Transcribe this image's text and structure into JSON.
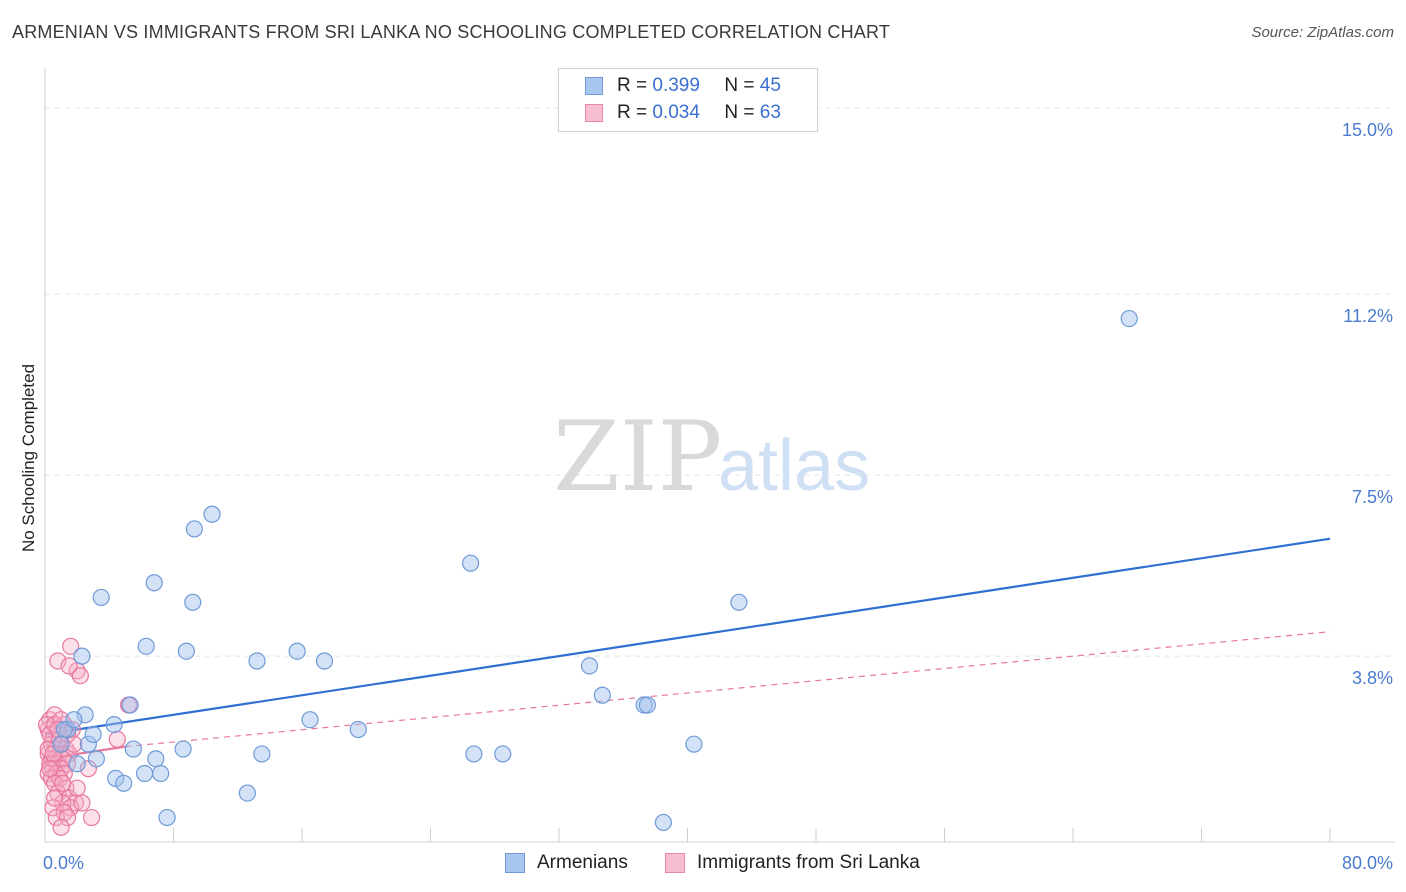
{
  "header": {
    "title": "ARMENIAN VS IMMIGRANTS FROM SRI LANKA NO SCHOOLING COMPLETED CORRELATION CHART",
    "source": "Source: ZipAtlas.com"
  },
  "watermark": {
    "zip": "ZIP",
    "atlas": "atlas"
  },
  "legend": {
    "rows": [
      {
        "r_label": "R =",
        "r_value": "0.399",
        "n_label": "N =",
        "n_value": "45",
        "color": "#a9c6ef",
        "border": "#6f9ad8"
      },
      {
        "r_label": "R =",
        "r_value": "0.034",
        "n_label": "N =",
        "n_value": "63",
        "color": "#f7bdd0",
        "border": "#e887a6"
      }
    ]
  },
  "bottom_legend": {
    "armenians": "Armenians",
    "sri_lanka": "Immigrants from Sri Lanka"
  },
  "colors": {
    "armenian_fill": "rgba(158,190,235,0.45)",
    "armenian_stroke": "#6f9ad8",
    "armenian_line": "#2f6fd0",
    "srilanka_fill": "rgba(246,176,200,0.40)",
    "srilanka_stroke": "#e8779d",
    "srilanka_line": "#e8779d",
    "grid": "#e3e3e3",
    "axis_label": "#4a7bd0"
  },
  "chart_data": {
    "type": "scatter",
    "title": "ARMENIAN VS IMMIGRANTS FROM SRI LANKA NO SCHOOLING COMPLETED CORRELATION CHART",
    "xlabel": "",
    "ylabel": "No Schooling Completed",
    "xlim": [
      0,
      80
    ],
    "ylim": [
      0,
      15.7
    ],
    "x_tick_labels": [
      "0.0%",
      "80.0%"
    ],
    "y_ticks": [
      3.8,
      7.5,
      11.2,
      15.0
    ],
    "y_tick_labels": [
      "3.8%",
      "7.5%",
      "11.2%",
      "15.0%"
    ],
    "grid": true,
    "legend_placement": "top-center",
    "series": [
      {
        "name": "Armenians",
        "points": [
          [
            2.3,
            3.8
          ],
          [
            3.5,
            5.0
          ],
          [
            6.8,
            5.3
          ],
          [
            9.3,
            6.4
          ],
          [
            10.4,
            6.7
          ],
          [
            9.2,
            4.9
          ],
          [
            6.3,
            4.0
          ],
          [
            8.8,
            3.9
          ],
          [
            13.2,
            3.7
          ],
          [
            15.7,
            3.9
          ],
          [
            17.4,
            3.7
          ],
          [
            2.5,
            2.6
          ],
          [
            1.4,
            2.3
          ],
          [
            4.3,
            2.4
          ],
          [
            2.7,
            2.0
          ],
          [
            5.5,
            1.9
          ],
          [
            8.6,
            1.9
          ],
          [
            13.5,
            1.8
          ],
          [
            3.2,
            1.7
          ],
          [
            6.9,
            1.7
          ],
          [
            4.4,
            1.3
          ],
          [
            4.9,
            1.2
          ],
          [
            6.2,
            1.4
          ],
          [
            7.2,
            1.4
          ],
          [
            12.6,
            1.0
          ],
          [
            7.6,
            0.5
          ],
          [
            16.5,
            2.5
          ],
          [
            19.5,
            2.3
          ],
          [
            26.5,
            5.7
          ],
          [
            26.7,
            1.8
          ],
          [
            28.5,
            1.8
          ],
          [
            33.9,
            3.6
          ],
          [
            34.7,
            3.0
          ],
          [
            37.3,
            2.8
          ],
          [
            37.5,
            2.8
          ],
          [
            40.4,
            2.0
          ],
          [
            38.5,
            0.4
          ],
          [
            43.2,
            4.9
          ],
          [
            67.5,
            10.7
          ],
          [
            1.2,
            2.3
          ],
          [
            1.8,
            2.5
          ],
          [
            5.3,
            2.8
          ],
          [
            3.0,
            2.2
          ],
          [
            1.0,
            2.0
          ],
          [
            2.0,
            1.6
          ]
        ],
        "trend": {
          "x": [
            0,
            80
          ],
          "y": [
            2.2,
            6.2
          ]
        }
      },
      {
        "name": "Immigrants from Sri Lanka",
        "points": [
          [
            1.6,
            4.0
          ],
          [
            0.8,
            3.7
          ],
          [
            2.0,
            3.5
          ],
          [
            2.2,
            3.4
          ],
          [
            1.5,
            3.6
          ],
          [
            5.2,
            2.8
          ],
          [
            0.3,
            2.5
          ],
          [
            0.6,
            2.6
          ],
          [
            1.2,
            2.4
          ],
          [
            0.2,
            2.3
          ],
          [
            0.9,
            2.2
          ],
          [
            0.5,
            2.1
          ],
          [
            0.4,
            2.0
          ],
          [
            1.0,
            2.0
          ],
          [
            0.7,
            1.9
          ],
          [
            1.3,
            1.9
          ],
          [
            0.2,
            1.8
          ],
          [
            0.9,
            1.8
          ],
          [
            1.5,
            1.8
          ],
          [
            0.4,
            1.7
          ],
          [
            0.6,
            1.7
          ],
          [
            1.1,
            1.7
          ],
          [
            0.3,
            1.6
          ],
          [
            0.8,
            1.6
          ],
          [
            1.4,
            1.6
          ],
          [
            0.5,
            1.5
          ],
          [
            1.0,
            1.5
          ],
          [
            0.2,
            1.4
          ],
          [
            0.7,
            1.4
          ],
          [
            1.2,
            1.4
          ],
          [
            0.4,
            1.3
          ],
          [
            0.9,
            1.3
          ],
          [
            0.6,
            1.2
          ],
          [
            1.3,
            1.1
          ],
          [
            0.8,
            1.0
          ],
          [
            1.5,
            0.9
          ],
          [
            1.9,
            0.8
          ],
          [
            1.1,
            0.8
          ],
          [
            0.5,
            0.7
          ],
          [
            1.6,
            0.7
          ],
          [
            2.3,
            0.8
          ],
          [
            1.2,
            0.6
          ],
          [
            0.7,
            0.5
          ],
          [
            1.4,
            0.5
          ],
          [
            2.9,
            0.5
          ],
          [
            1.0,
            0.3
          ],
          [
            4.5,
            2.1
          ],
          [
            2.7,
            1.5
          ],
          [
            1.8,
            2.0
          ],
          [
            0.1,
            2.4
          ],
          [
            0.3,
            2.2
          ],
          [
            0.6,
            2.4
          ],
          [
            1.0,
            2.5
          ],
          [
            1.7,
            2.3
          ],
          [
            0.2,
            1.9
          ],
          [
            0.5,
            1.8
          ],
          [
            0.9,
            2.1
          ],
          [
            1.4,
            2.2
          ],
          [
            0.8,
            2.3
          ],
          [
            0.3,
            1.5
          ],
          [
            1.1,
            1.2
          ],
          [
            0.6,
            0.9
          ],
          [
            2.0,
            1.1
          ]
        ],
        "trend_solid": {
          "x": [
            0,
            5
          ],
          "y": [
            1.7,
            1.95
          ]
        },
        "trend_dashed": {
          "x": [
            5,
            80
          ],
          "y": [
            1.95,
            4.3
          ]
        }
      }
    ]
  }
}
